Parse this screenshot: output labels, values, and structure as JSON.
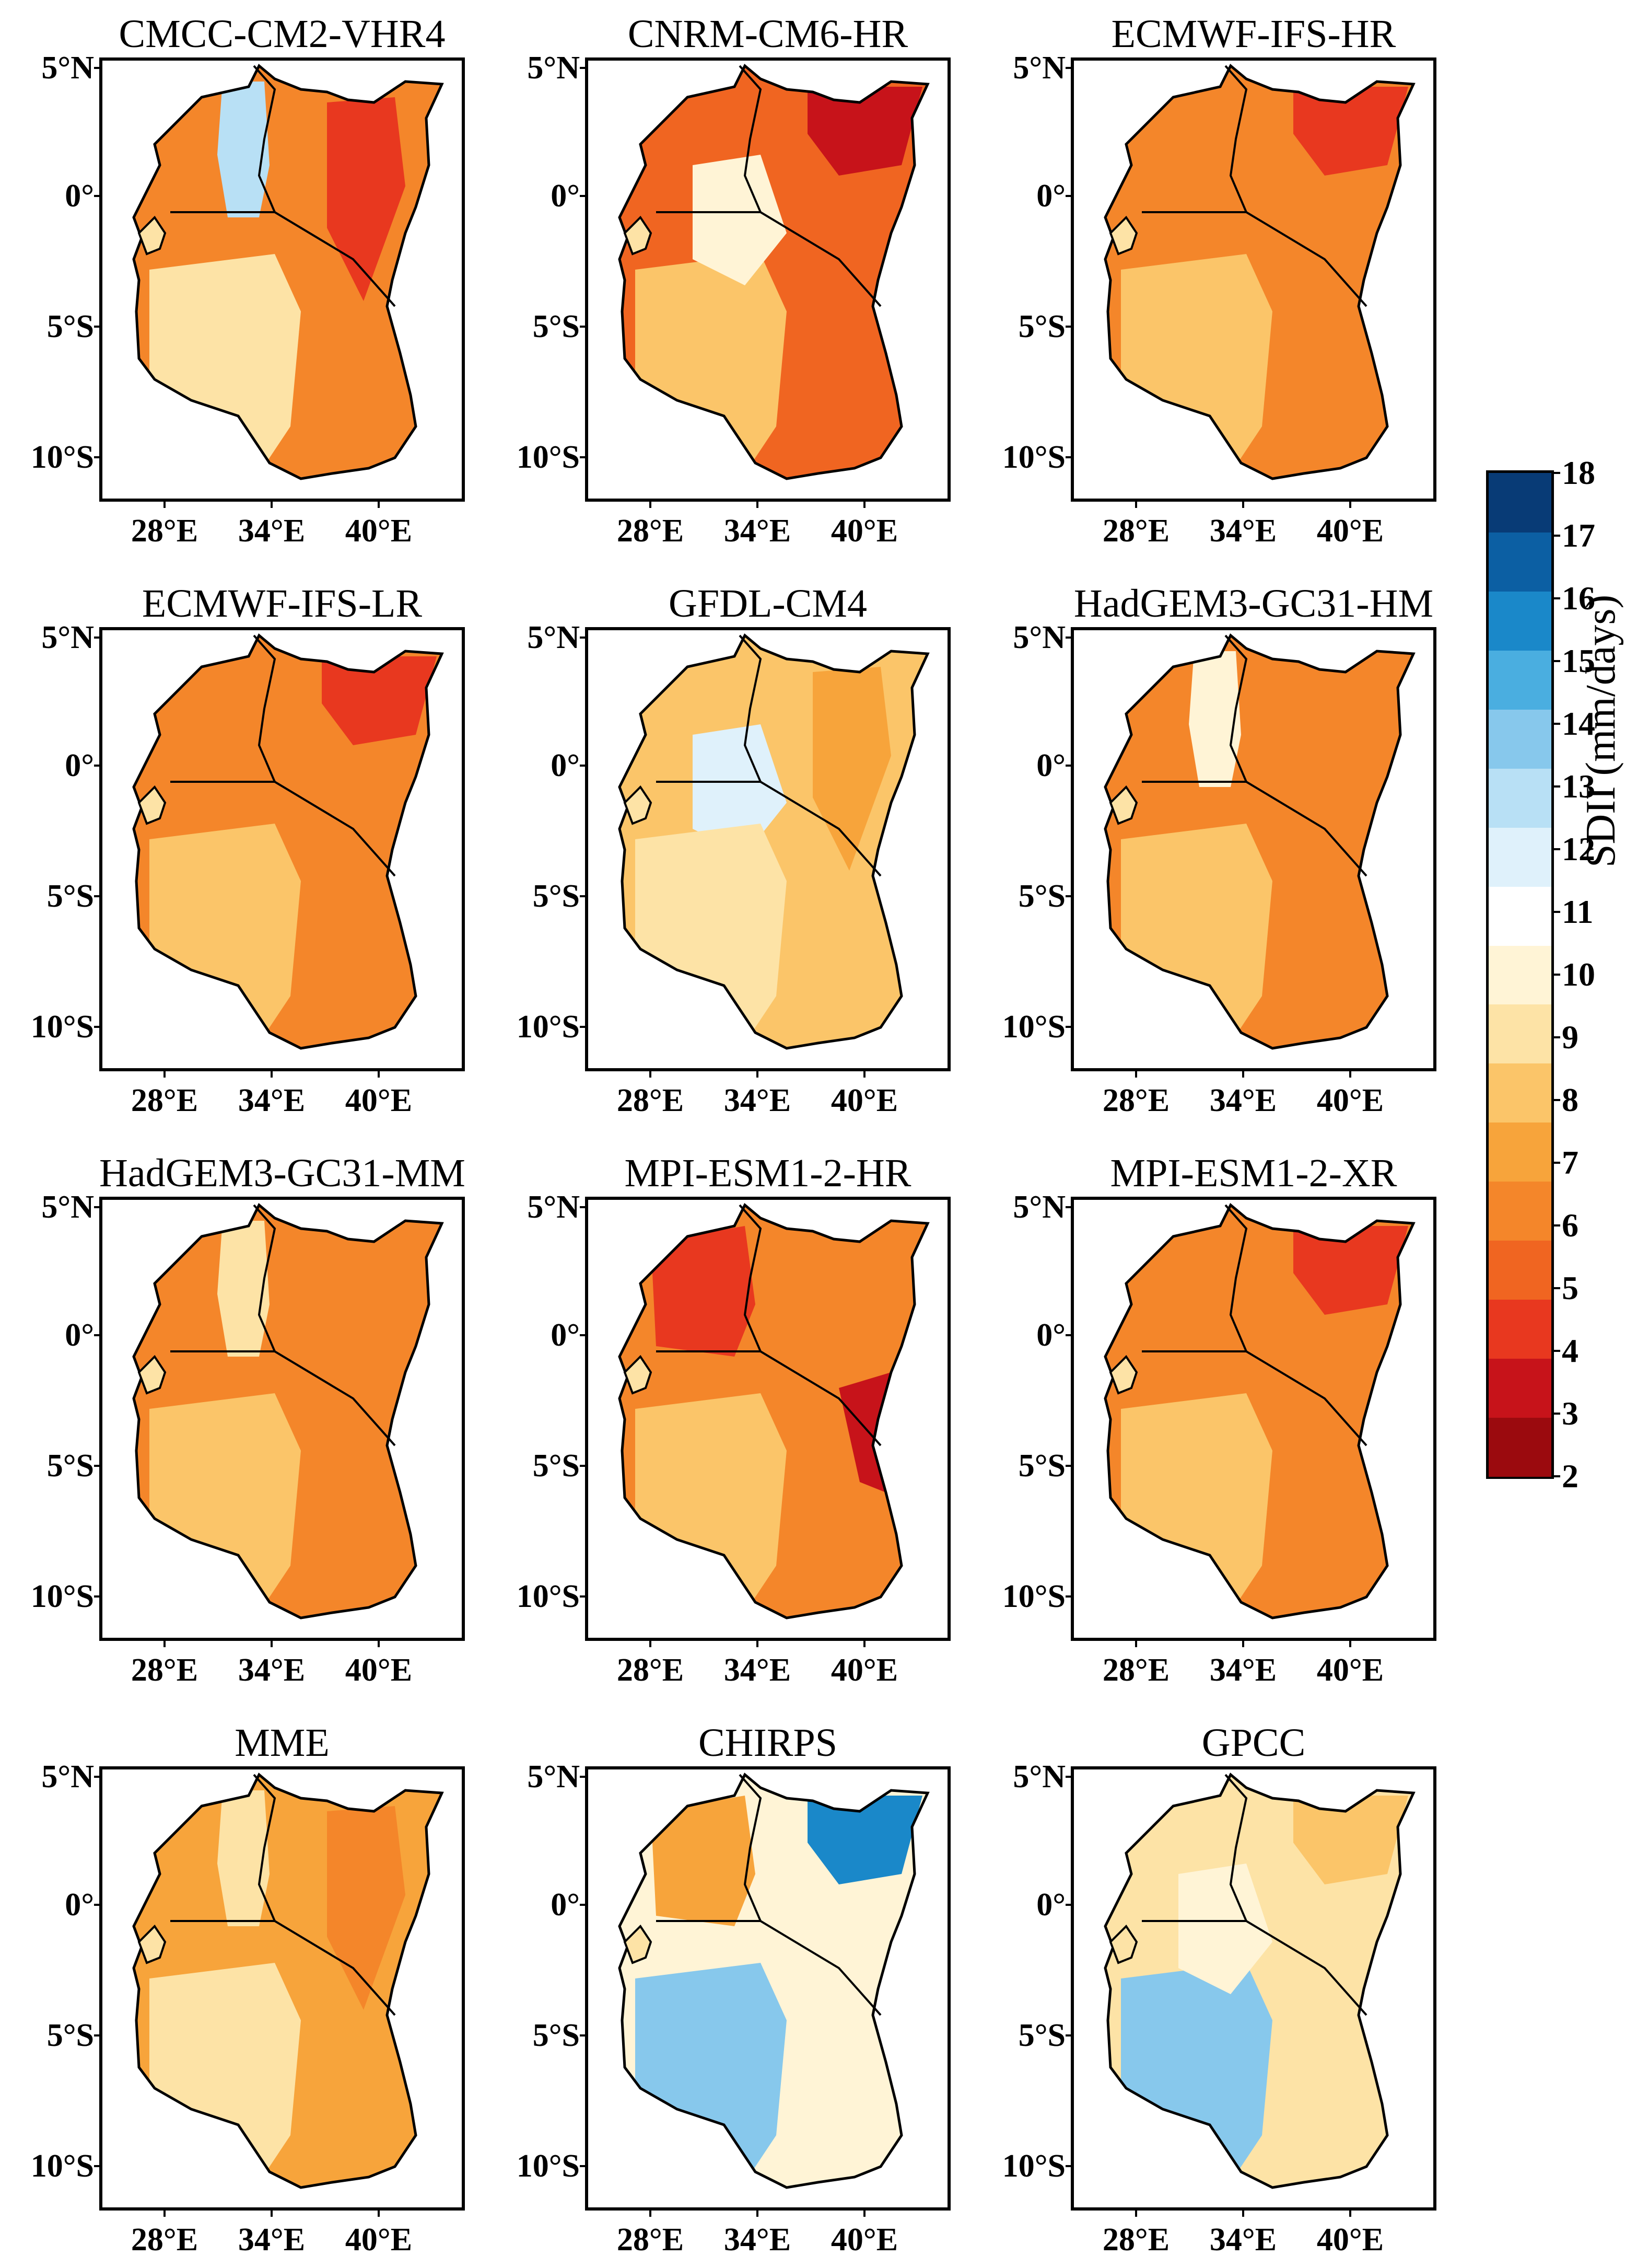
{
  "figure": {
    "colorbar_title": "SDII (mm/days)",
    "colorbar_ticks": [
      "2",
      "3",
      "4",
      "5",
      "6",
      "7",
      "8",
      "9",
      "10",
      "11",
      "12",
      "13",
      "14",
      "15",
      "16",
      "17",
      "18"
    ],
    "colorbar_colors": [
      "#9b0a0e",
      "#c7131a",
      "#e8381f",
      "#f06521",
      "#f4862a",
      "#f7a43b",
      "#fbc569",
      "#fde3a6",
      "#fff4d6",
      "#ffffff",
      "#dff1fb",
      "#b8e0f5",
      "#87c8ec",
      "#4aaee0",
      "#1a88c9",
      "#0c5fa3",
      "#083b76"
    ],
    "lat_labels": [
      "5°N",
      "0°",
      "5°S",
      "10°S"
    ],
    "lon_labels": [
      "28°E",
      "34°E",
      "40°E"
    ]
  },
  "panels": [
    {
      "title": "CMCC-CM2-VHR4",
      "base": "#f4862a",
      "blobs": [
        {
          "c": "#b8e0f5",
          "t": "strip"
        },
        {
          "c": "#fde3a6",
          "t": "south"
        },
        {
          "c": "#e8381f",
          "t": "east"
        }
      ]
    },
    {
      "title": "CNRM-CM6-HR",
      "base": "#f06521",
      "blobs": [
        {
          "c": "#c7131a",
          "t": "ne"
        },
        {
          "c": "#fbc569",
          "t": "south"
        },
        {
          "c": "#fff4d6",
          "t": "center"
        }
      ]
    },
    {
      "title": "ECMWF-IFS-HR",
      "base": "#f4862a",
      "blobs": [
        {
          "c": "#e8381f",
          "t": "ne"
        },
        {
          "c": "#fbc569",
          "t": "south"
        }
      ]
    },
    {
      "title": "ECMWF-IFS-LR",
      "base": "#f4862a",
      "blobs": [
        {
          "c": "#e8381f",
          "t": "ne"
        },
        {
          "c": "#fbc569",
          "t": "south"
        }
      ]
    },
    {
      "title": "GFDL-CM4",
      "base": "#fbc569",
      "blobs": [
        {
          "c": "#dff1fb",
          "t": "center"
        },
        {
          "c": "#fde3a6",
          "t": "south"
        },
        {
          "c": "#f7a43b",
          "t": "east"
        }
      ]
    },
    {
      "title": "HadGEM3-GC31-HM",
      "base": "#f4862a",
      "blobs": [
        {
          "c": "#fff4d6",
          "t": "strip"
        },
        {
          "c": "#fbc569",
          "t": "south"
        }
      ]
    },
    {
      "title": "HadGEM3-GC31-MM",
      "base": "#f4862a",
      "blobs": [
        {
          "c": "#fde3a6",
          "t": "strip"
        },
        {
          "c": "#fbc569",
          "t": "south"
        }
      ]
    },
    {
      "title": "MPI-ESM1-2-HR",
      "base": "#f4862a",
      "blobs": [
        {
          "c": "#e8381f",
          "t": "nw"
        },
        {
          "c": "#c7131a",
          "t": "coast"
        },
        {
          "c": "#fbc569",
          "t": "south"
        }
      ]
    },
    {
      "title": "MPI-ESM1-2-XR",
      "base": "#f4862a",
      "blobs": [
        {
          "c": "#e8381f",
          "t": "ne"
        },
        {
          "c": "#fbc569",
          "t": "south"
        }
      ]
    },
    {
      "title": "MME",
      "base": "#f7a43b",
      "blobs": [
        {
          "c": "#fde3a6",
          "t": "strip"
        },
        {
          "c": "#fde3a6",
          "t": "south"
        },
        {
          "c": "#f4862a",
          "t": "east"
        }
      ]
    },
    {
      "title": "CHIRPS",
      "base": "#fff4d6",
      "blobs": [
        {
          "c": "#f7a43b",
          "t": "nw"
        },
        {
          "c": "#1a88c9",
          "t": "ne"
        },
        {
          "c": "#87c8ec",
          "t": "south"
        }
      ]
    },
    {
      "title": "GPCC",
      "base": "#fde3a6",
      "blobs": [
        {
          "c": "#fbc569",
          "t": "ne"
        },
        {
          "c": "#87c8ec",
          "t": "south"
        },
        {
          "c": "#fff4d6",
          "t": "center"
        }
      ]
    }
  ]
}
